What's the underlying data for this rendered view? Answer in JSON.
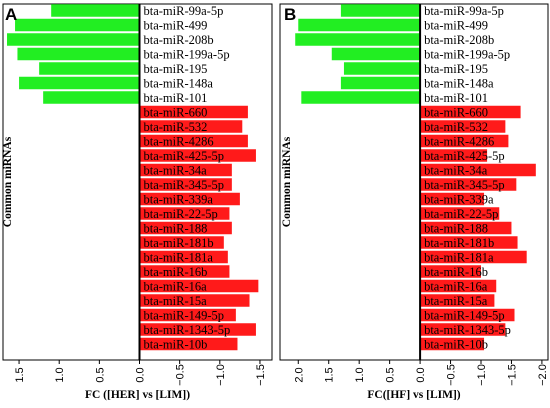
{
  "chart_data": [
    {
      "type": "bar",
      "orientation": "horizontal",
      "panel_label": "A",
      "xlabel": "FC ([HER] vs [LIM])",
      "ylabel": "Common miRNAs",
      "xlim": [
        1.7,
        -1.65
      ],
      "x_inverted": true,
      "xticks": [
        1.5,
        1.0,
        0.5,
        0.0,
        -0.5,
        -1.0,
        -1.5
      ],
      "xtick_labels": [
        "1.5",
        "1.0",
        "0.5",
        "0.0",
        "−0.5",
        "−1.0",
        "−1.5"
      ],
      "categories": [
        "bta-miR-99a-5p",
        "bta-miR-499",
        "bta-miR-208b",
        "bta-miR-199a-5p",
        "bta-miR-195",
        "bta-miR-148a",
        "bta-miR-101",
        "bta-miR-660",
        "bta-miR-532",
        "bta-miR-4286",
        "bta-miR-425-5p",
        "bta-miR-34a",
        "bta-miR-345-5p",
        "bta-miR-339a",
        "bta-miR-22-5p",
        "bta-miR-188",
        "bta-miR-181b",
        "bta-miR-181a",
        "bta-miR-16b",
        "bta-miR-16a",
        "bta-miR-15a",
        "bta-miR-149-5p",
        "bta-miR-1343-5p",
        "bta-miR-10b"
      ],
      "values": [
        1.1,
        1.55,
        1.65,
        1.52,
        1.25,
        1.5,
        1.2,
        -1.35,
        -1.28,
        -1.35,
        -1.45,
        -1.15,
        -1.15,
        -1.25,
        -1.12,
        -1.15,
        -1.05,
        -1.1,
        -1.12,
        -1.48,
        -1.37,
        -1.2,
        -1.45,
        -1.22
      ],
      "colors": {
        "up": "#22ee22",
        "down": "#ff1a1a"
      }
    },
    {
      "type": "bar",
      "orientation": "horizontal",
      "panel_label": "B",
      "xlabel": "FC([HF] vs [LIM])",
      "ylabel": "Common miRNAs",
      "xlim": [
        2.3,
        -2.1
      ],
      "x_inverted": true,
      "xticks": [
        2.0,
        1.5,
        1.0,
        0.5,
        0.0,
        -0.5,
        -1.0,
        -1.5,
        -2.0
      ],
      "xtick_labels": [
        "2.0",
        "1.5",
        "1.0",
        "0.5",
        "0.0",
        "−0.5",
        "−1.0",
        "−1.5",
        "−2.0"
      ],
      "categories": [
        "bta-miR-99a-5p",
        "bta-miR-499",
        "bta-miR-208b",
        "bta-miR-199a-5p",
        "bta-miR-195",
        "bta-miR-148a",
        "bta-miR-101",
        "bta-miR-660",
        "bta-miR-532",
        "bta-miR-4286",
        "bta-miR-425-5p",
        "bta-miR-34a",
        "bta-miR-345-5p",
        "bta-miR-339a",
        "bta-miR-22-5p",
        "bta-miR-188",
        "bta-miR-181b",
        "bta-miR-181a",
        "bta-miR-16b",
        "bta-miR-16a",
        "bta-miR-15a",
        "bta-miR-149-5p",
        "bta-miR-1343-5p",
        "bta-miR-10b"
      ],
      "values": [
        1.3,
        2.0,
        2.05,
        1.45,
        1.25,
        1.3,
        1.95,
        -1.65,
        -1.4,
        -1.45,
        -1.1,
        -1.9,
        -1.58,
        -1.05,
        -1.3,
        -1.5,
        -1.6,
        -1.75,
        -1.0,
        -1.25,
        -1.22,
        -1.55,
        -1.4,
        -1.05
      ],
      "colors": {
        "up": "#22ee22",
        "down": "#ff1a1a"
      }
    }
  ]
}
